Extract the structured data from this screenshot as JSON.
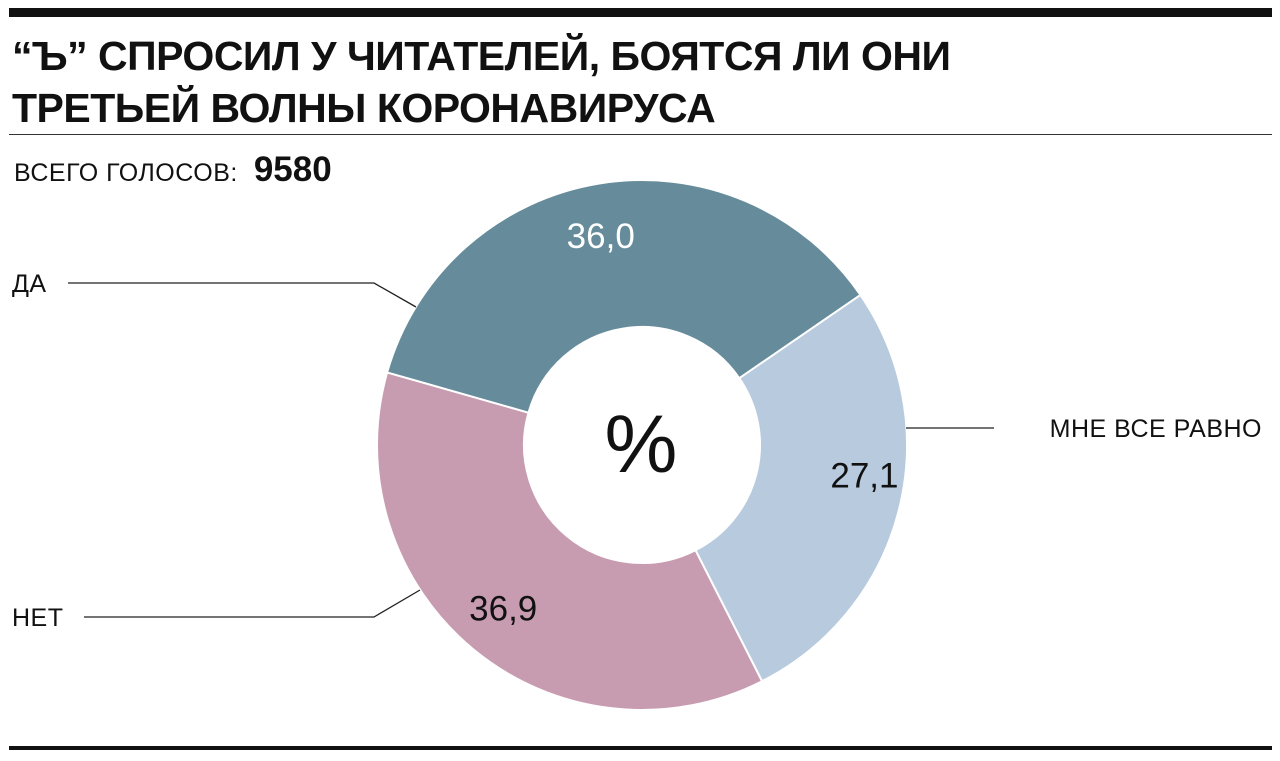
{
  "title": {
    "line1": "“Ъ” СПРОСИЛ У ЧИТАТЕЛЕЙ, БОЯТСЯ ЛИ ОНИ",
    "line2": "ТРЕТЬЕЙ ВОЛНЫ КОРОНАВИРУСА"
  },
  "votes": {
    "label": "ВСЕГО ГОЛОСОВ:",
    "value": "9580"
  },
  "chart_data": {
    "type": "pie",
    "center_label": "%",
    "slices": [
      {
        "category": "ДА",
        "value": 36.0,
        "value_label": "36,0",
        "color": "#668c9c",
        "label_color": "#ffffff"
      },
      {
        "category": "МНЕ ВСЕ РАВНО",
        "value": 27.1,
        "value_label": "27,1",
        "color": "#b8cade",
        "label_color": "#111111"
      },
      {
        "category": "НЕТ",
        "value": 36.9,
        "value_label": "36,9",
        "color": "#c89cb0",
        "label_color": "#111111"
      }
    ]
  }
}
